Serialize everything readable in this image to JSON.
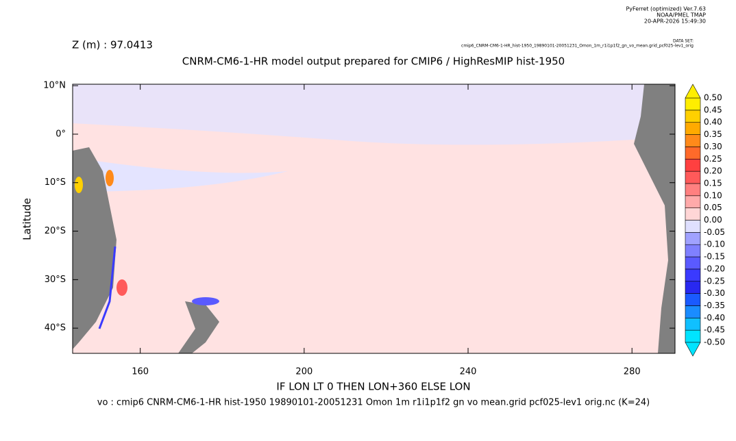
{
  "header": {
    "program": "PyFerret (optimized) Ver.7.63",
    "org": "NOAA/PMEL TMAP",
    "timestamp": "20-APR-2026 15:49:30",
    "dataset_label": "DATA SET:",
    "dataset": "cmip6_CNRM-CM6-1-HR_hist-1950_19890101-20051231_Omon_1m_r1i1p1f2_gn_vo_mean.grid_pcf025-lev1_orig"
  },
  "chart_data": {
    "type": "heatmap",
    "subtitle": "Z (m) : 97.0413",
    "title": "CNRM-CM6-1-HR model output prepared for CMIP6 / HighResMIP hist-1950",
    "xlabel": "IF LON LT 0 THEN LON+360 ELSE LON",
    "ylabel": "Latitude",
    "footer": "vo : cmip6 CNRM-CM6-1-HR hist-1950 19890101-20051231 Omon 1m r1i1p1f2 gn vo mean.grid pcf025-lev1 orig.nc (K=24)",
    "xlim": [
      143.5,
      290.5
    ],
    "xticks": [
      160,
      200,
      240,
      280
    ],
    "ylim": [
      -45.2,
      10.3
    ],
    "yticks": [
      {
        "value": 10,
        "label": "10°N"
      },
      {
        "value": 0,
        "label": "0°"
      },
      {
        "value": -10,
        "label": "10°S"
      },
      {
        "value": -20,
        "label": "20°S"
      },
      {
        "value": -30,
        "label": "30°S"
      },
      {
        "value": -40,
        "label": "40°S"
      }
    ],
    "colorbar": {
      "levels": [
        {
          "value": -0.5,
          "label": "-0.50"
        },
        {
          "value": -0.45,
          "label": "-0.45"
        },
        {
          "value": -0.4,
          "label": "-0.40"
        },
        {
          "value": -0.35,
          "label": "-0.35"
        },
        {
          "value": -0.3,
          "label": "-0.30"
        },
        {
          "value": -0.25,
          "label": "-0.25"
        },
        {
          "value": -0.2,
          "label": "-0.20"
        },
        {
          "value": -0.15,
          "label": "-0.15"
        },
        {
          "value": -0.1,
          "label": "-0.10"
        },
        {
          "value": -0.05,
          "label": "-0.05"
        },
        {
          "value": 0,
          "label": "0.00"
        },
        {
          "value": 0.05,
          "label": "0.05"
        },
        {
          "value": 0.1,
          "label": "0.10"
        },
        {
          "value": 0.15,
          "label": "0.15"
        },
        {
          "value": 0.2,
          "label": "0.20"
        },
        {
          "value": 0.25,
          "label": "0.25"
        },
        {
          "value": 0.3,
          "label": "0.30"
        },
        {
          "value": 0.35,
          "label": "0.35"
        },
        {
          "value": 0.4,
          "label": "0.40"
        },
        {
          "value": 0.45,
          "label": "0.45"
        },
        {
          "value": 0.5,
          "label": "0.50"
        }
      ],
      "colors": [
        "#00e4ff",
        "#10c0ff",
        "#1a8cff",
        "#1a5aff",
        "#2828f0",
        "#3a3aff",
        "#5a5aff",
        "#7f80ff",
        "#a0a2ff",
        "#dfe0ff",
        "#ffd6d6",
        "#ffaaaa",
        "#ff8080",
        "#ff5a5a",
        "#ff4040",
        "#ff6a2a",
        "#ff8a1a",
        "#ffaa00",
        "#ffd000",
        "#ffee00"
      ]
    }
  }
}
